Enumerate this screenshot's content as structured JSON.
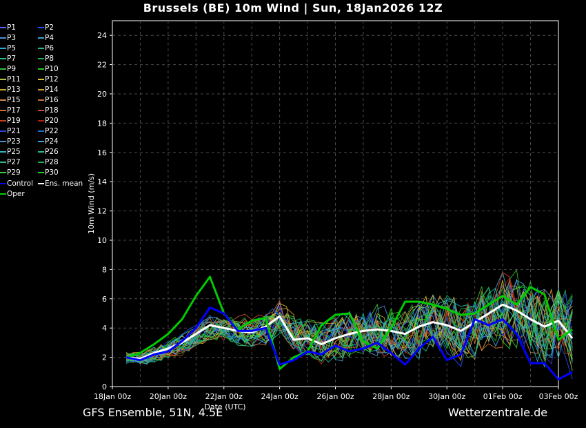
{
  "title": "Brussels  (BE)  10m Wind | Sun, 18Jan2026 12Z",
  "footer": {
    "left": "GFS Ensemble, 51N, 4.5E",
    "right": "Wetterzentrale.de"
  },
  "colors": {
    "background": "#000000",
    "grid": "#4a4a4a",
    "control": "#0000ff",
    "mean": "#ffffff",
    "oper": "#00cc00"
  },
  "legend": [
    {
      "label": "P1",
      "color": "#5b5bff"
    },
    {
      "label": "P2",
      "color": "#1e50ff"
    },
    {
      "label": "P3",
      "color": "#4f8fd8"
    },
    {
      "label": "P4",
      "color": "#3f9fd0"
    },
    {
      "label": "P5",
      "color": "#28b0c8"
    },
    {
      "label": "P6",
      "color": "#22b89a"
    },
    {
      "label": "P7",
      "color": "#20c080"
    },
    {
      "label": "P8",
      "color": "#18b050"
    },
    {
      "label": "P9",
      "color": "#30c030"
    },
    {
      "label": "P10",
      "color": "#22cc22"
    },
    {
      "label": "P11",
      "color": "#b8c040"
    },
    {
      "label": "P12",
      "color": "#d8c030"
    },
    {
      "label": "P13",
      "color": "#d0b030"
    },
    {
      "label": "P14",
      "color": "#d8a030"
    },
    {
      "label": "P15",
      "color": "#c88850"
    },
    {
      "label": "P16",
      "color": "#c87040"
    },
    {
      "label": "P17",
      "color": "#d07030"
    },
    {
      "label": "P18",
      "color": "#c05030"
    },
    {
      "label": "P19",
      "color": "#c04020"
    },
    {
      "label": "P20",
      "color": "#b02010"
    },
    {
      "label": "P21",
      "color": "#3040d8"
    },
    {
      "label": "P22",
      "color": "#2070d0"
    },
    {
      "label": "P23",
      "color": "#5090d0"
    },
    {
      "label": "P24",
      "color": "#40a8d8"
    },
    {
      "label": "P25",
      "color": "#30b8c0"
    },
    {
      "label": "P26",
      "color": "#20c0a0"
    },
    {
      "label": "P27",
      "color": "#30b880"
    },
    {
      "label": "P28",
      "color": "#20a850"
    },
    {
      "label": "P29",
      "color": "#40c840"
    },
    {
      "label": "P30",
      "color": "#20d020"
    },
    {
      "label": "Control",
      "color": "#0000ff"
    },
    {
      "label": "Ens. mean",
      "color": "#ffffff"
    },
    {
      "label": "Oper",
      "color": "#00cc00"
    }
  ],
  "chart_data": {
    "type": "line",
    "title": "Brussels  (BE)  10m Wind | Sun, 18Jan2026 12Z",
    "xlabel": "Date (UTC)",
    "ylabel": "10m Wind (m/s)",
    "ylim": [
      0,
      25
    ],
    "yticks": [
      0,
      2,
      4,
      6,
      8,
      10,
      12,
      14,
      16,
      18,
      20,
      22,
      24
    ],
    "xtick_labels": [
      "18Jan 00z",
      "20Jan 00z",
      "22Jan 00z",
      "24Jan 00z",
      "26Jan 00z",
      "28Jan 00z",
      "30Jan 00z",
      "01Feb 00z",
      "03Feb 00z"
    ],
    "grid": true,
    "legend_position": "left",
    "series": [
      {
        "name": "Ens. mean",
        "color": "#ffffff",
        "x": [
          "18Jan 12z",
          "19Jan 00z",
          "19Jan 12z",
          "20Jan 00z",
          "20Jan 12z",
          "21Jan 00z",
          "21Jan 12z",
          "22Jan 00z",
          "22Jan 12z",
          "23Jan 00z",
          "23Jan 12z",
          "24Jan 00z",
          "24Jan 12z",
          "25Jan 00z",
          "25Jan 12z",
          "26Jan 00z",
          "26Jan 12z",
          "27Jan 00z",
          "27Jan 12z",
          "28Jan 00z",
          "28Jan 12z",
          "29Jan 00z",
          "29Jan 12z",
          "30Jan 00z",
          "30Jan 12z",
          "31Jan 00z",
          "31Jan 12z",
          "01Feb 00z",
          "01Feb 12z",
          "02Feb 00z",
          "02Feb 12z",
          "03Feb 00z",
          "03Feb 12z"
        ],
        "values": [
          2.0,
          1.9,
          2.3,
          2.6,
          3.0,
          3.6,
          4.2,
          4.0,
          3.8,
          3.7,
          4.1,
          4.8,
          3.2,
          3.3,
          2.9,
          3.3,
          3.6,
          3.8,
          3.9,
          3.8,
          3.6,
          4.1,
          4.4,
          4.2,
          3.8,
          4.4,
          5.0,
          5.6,
          5.2,
          4.6,
          4.1,
          4.5,
          3.3
        ]
      },
      {
        "name": "Oper",
        "color": "#00cc00",
        "x": [
          "18Jan 12z",
          "19Jan 00z",
          "19Jan 12z",
          "20Jan 00z",
          "20Jan 12z",
          "21Jan 00z",
          "21Jan 12z",
          "22Jan 00z",
          "22Jan 12z",
          "23Jan 00z",
          "23Jan 12z",
          "24Jan 00z",
          "24Jan 12z",
          "25Jan 00z",
          "25Jan 12z",
          "26Jan 00z",
          "26Jan 12z",
          "27Jan 00z",
          "27Jan 12z",
          "28Jan 00z",
          "28Jan 12z",
          "29Jan 00z",
          "29Jan 12z",
          "30Jan 00z",
          "30Jan 12z",
          "31Jan 00z",
          "31Jan 12z",
          "01Feb 00z",
          "01Feb 12z",
          "02Feb 00z",
          "02Feb 12z",
          "03Feb 00z",
          "03Feb 12z"
        ],
        "values": [
          2.0,
          2.3,
          2.9,
          3.6,
          4.6,
          6.2,
          7.5,
          5.0,
          3.9,
          4.5,
          4.7,
          1.2,
          2.0,
          2.4,
          4.2,
          4.9,
          5.0,
          3.1,
          2.6,
          4.0,
          5.8,
          5.8,
          5.6,
          5.3,
          4.9,
          5.0,
          5.6,
          6.2,
          5.6,
          6.8,
          6.3,
          3.2,
          3.9
        ]
      },
      {
        "name": "Control",
        "color": "#0000ff",
        "x": [
          "18Jan 12z",
          "19Jan 00z",
          "19Jan 12z",
          "20Jan 00z",
          "20Jan 12z",
          "21Jan 00z",
          "21Jan 12z",
          "22Jan 00z",
          "22Jan 12z",
          "23Jan 00z",
          "23Jan 12z",
          "24Jan 00z",
          "24Jan 12z",
          "25Jan 00z",
          "25Jan 12z",
          "26Jan 00z",
          "26Jan 12z",
          "27Jan 00z",
          "27Jan 12z",
          "28Jan 00z",
          "28Jan 12z",
          "29Jan 00z",
          "29Jan 12z",
          "30Jan 00z",
          "30Jan 12z",
          "31Jan 00z",
          "31Jan 12z",
          "01Feb 00z",
          "01Feb 12z",
          "02Feb 00z",
          "02Feb 12z",
          "03Feb 00z",
          "03Feb 12z"
        ],
        "values": [
          2.0,
          1.8,
          2.2,
          2.4,
          3.1,
          4.0,
          5.4,
          5.0,
          3.8,
          3.8,
          4.0,
          1.5,
          1.8,
          2.4,
          2.2,
          2.8,
          2.4,
          2.6,
          3.0,
          2.3,
          1.5,
          2.6,
          3.4,
          1.8,
          2.2,
          4.6,
          4.2,
          4.6,
          3.6,
          1.6,
          1.6,
          0.5,
          1.0
        ]
      }
    ]
  }
}
